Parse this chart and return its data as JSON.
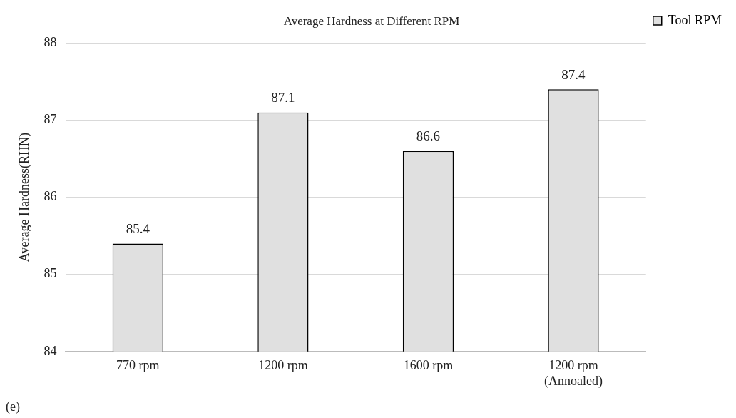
{
  "chart_data": {
    "type": "bar",
    "title": "Average Hardness at Different RPM",
    "ylabel": "Average Hardness(RHN)",
    "categories": [
      "770 rpm",
      "1200 rpm",
      "1600 rpm",
      "1200 rpm\n(Annoaled)"
    ],
    "series": [
      {
        "name": "Tool RPM",
        "color": "#e0e0e0",
        "values": [
          85.4,
          87.1,
          86.6,
          87.4
        ]
      }
    ],
    "ylim": [
      84,
      88
    ],
    "yticks": [
      84,
      85,
      86,
      87,
      88
    ],
    "grid": "y",
    "legend": "top right",
    "data_labels": true,
    "annotations": [
      "(e)"
    ]
  }
}
